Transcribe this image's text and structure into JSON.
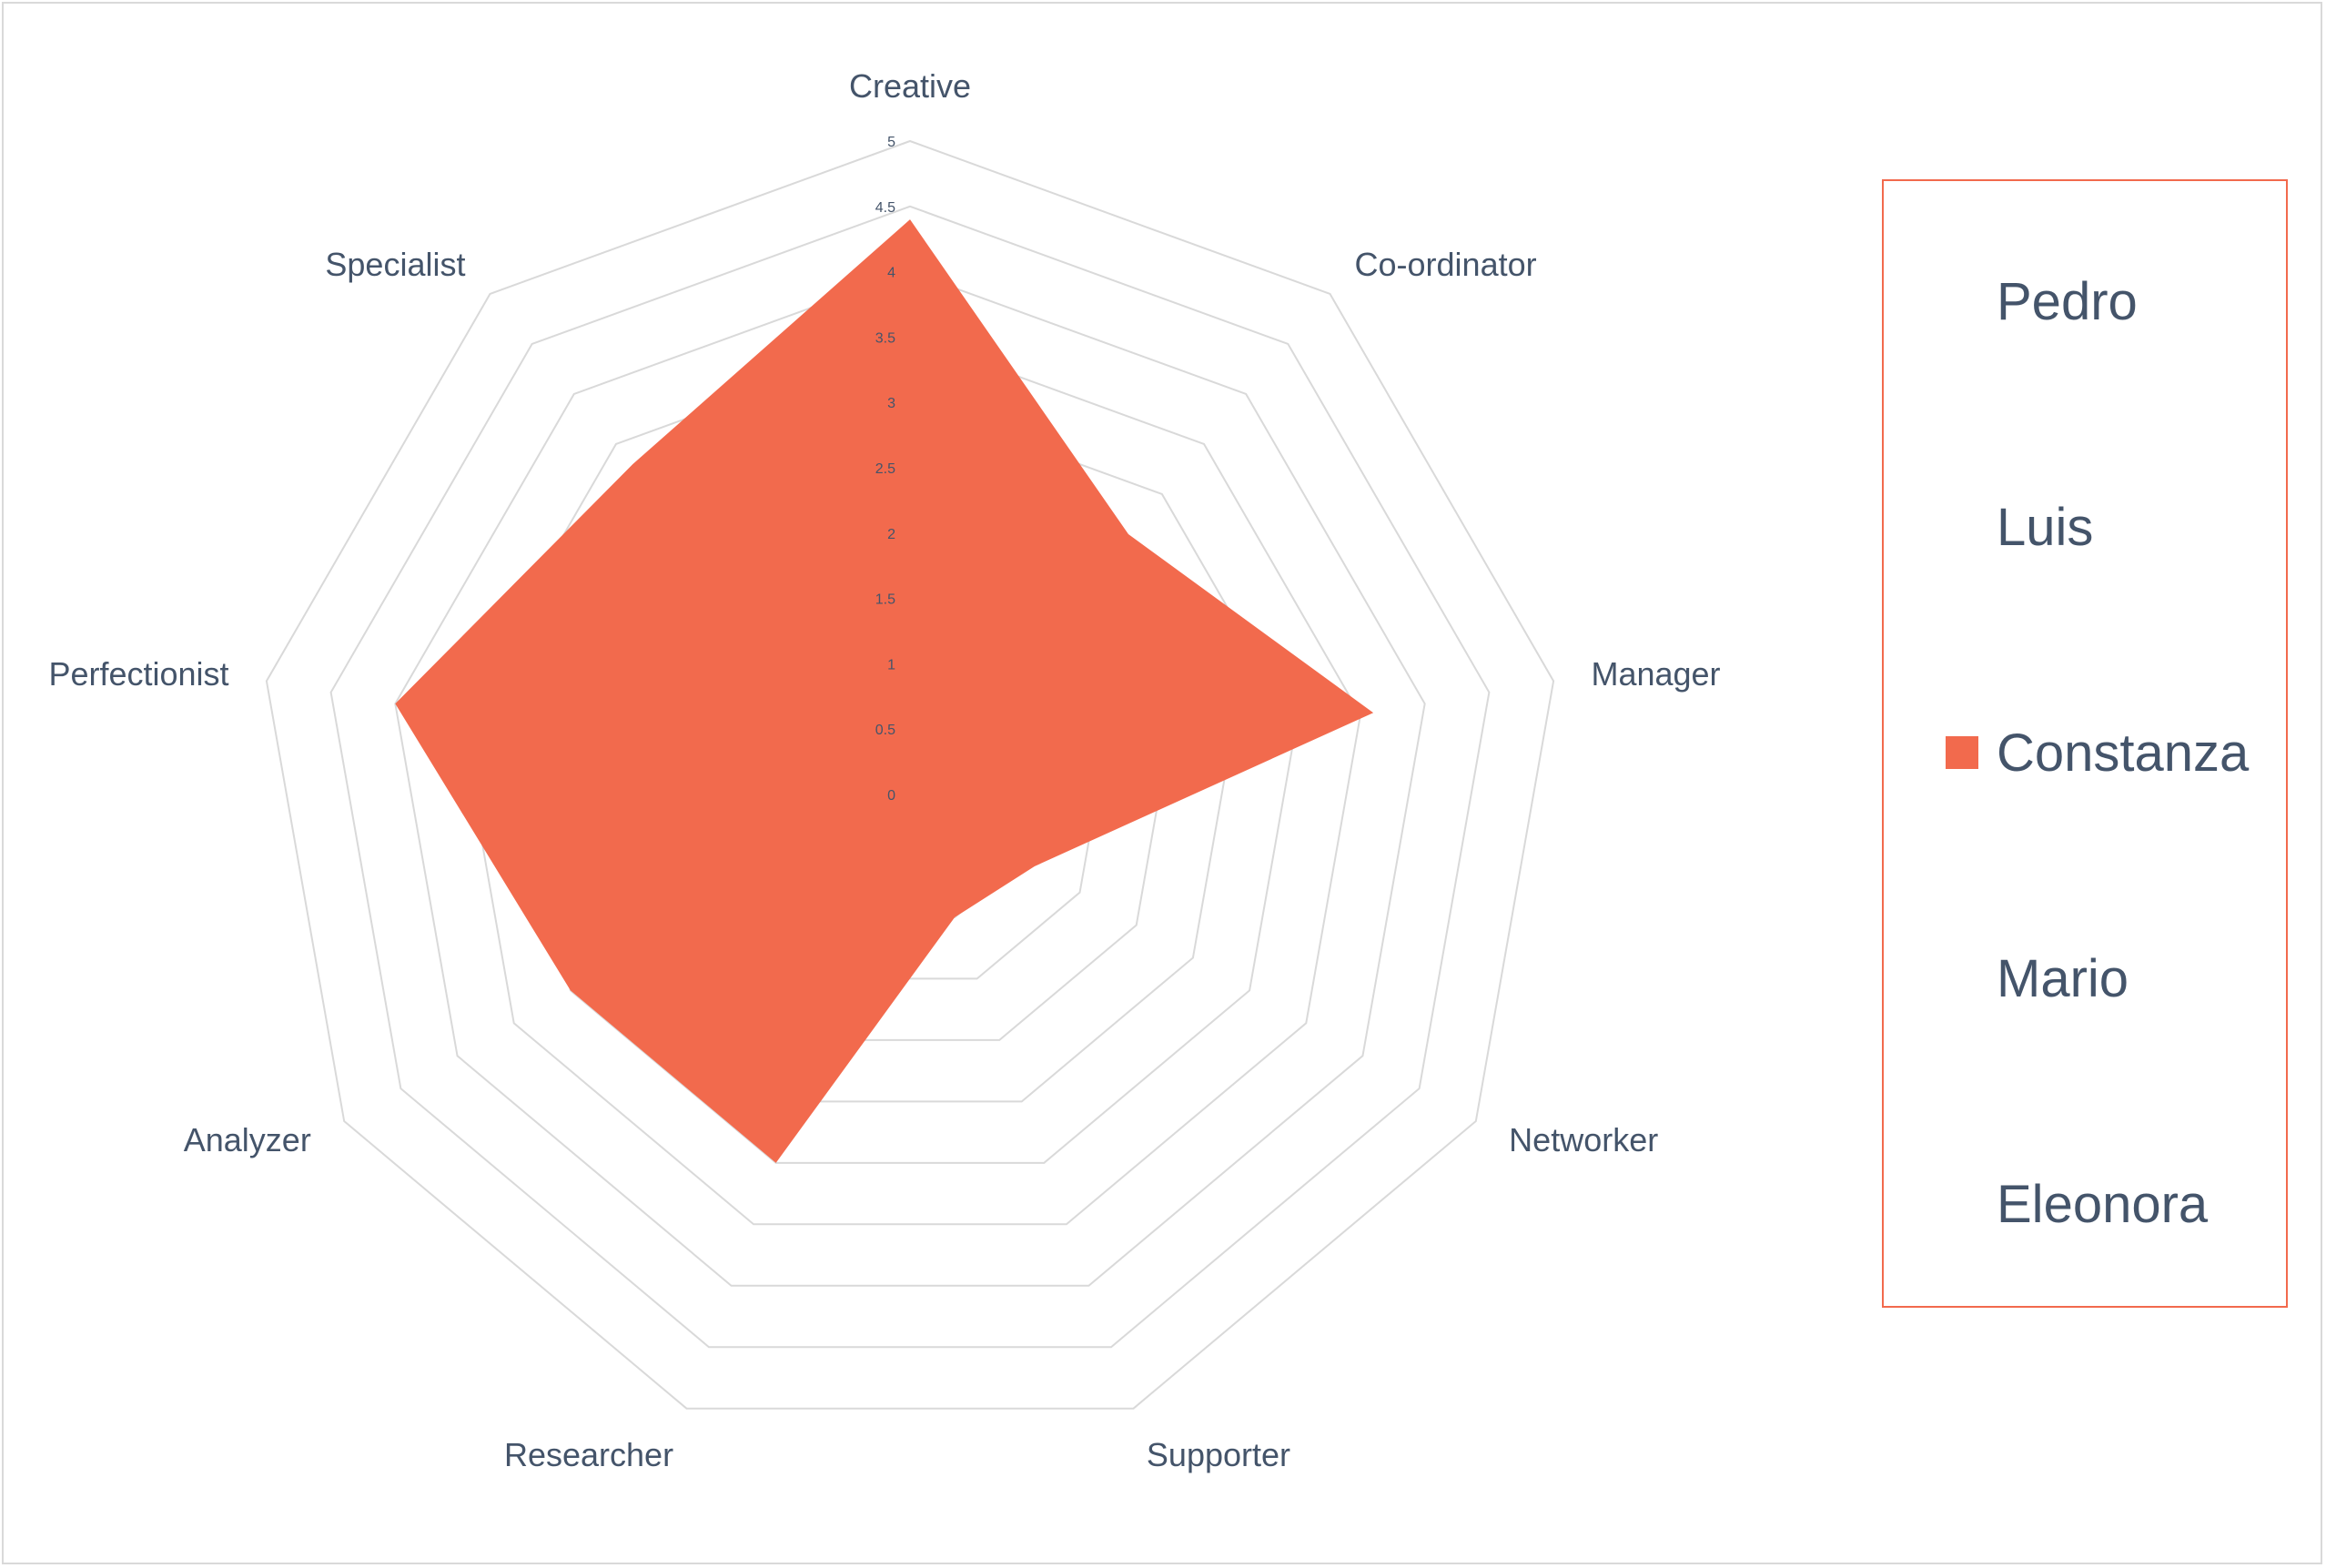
{
  "chart_data": {
    "type": "radar",
    "axes": [
      "Creative",
      "Co-ordinator",
      "Manager",
      "Networker",
      "Supporter",
      "Researcher",
      "Analyzer",
      "Perfectionist",
      "Specialist"
    ],
    "r_ticks": [
      "0",
      "0.5",
      "1",
      "1.5",
      "2",
      "2.5",
      "3",
      "3.5",
      "4",
      "4.5",
      "5"
    ],
    "r_range": [
      0,
      5
    ],
    "grid": true,
    "legend_position": "right",
    "series": [
      {
        "name": "Pedro",
        "visible": false,
        "values": []
      },
      {
        "name": "Luis",
        "visible": false,
        "values": []
      },
      {
        "name": "Constanza",
        "visible": true,
        "color": "#f26a4d",
        "values": [
          4.4,
          2.6,
          3.6,
          1.1,
          1.0,
          3.0,
          3.0,
          4.0,
          3.3
        ]
      },
      {
        "name": "Mario",
        "visible": false,
        "values": []
      },
      {
        "name": "Eleonora",
        "visible": false,
        "values": []
      }
    ]
  },
  "colors": {
    "grid": "#d9d9d9",
    "text": "#44546a",
    "legend_border": "#f26a4d"
  }
}
